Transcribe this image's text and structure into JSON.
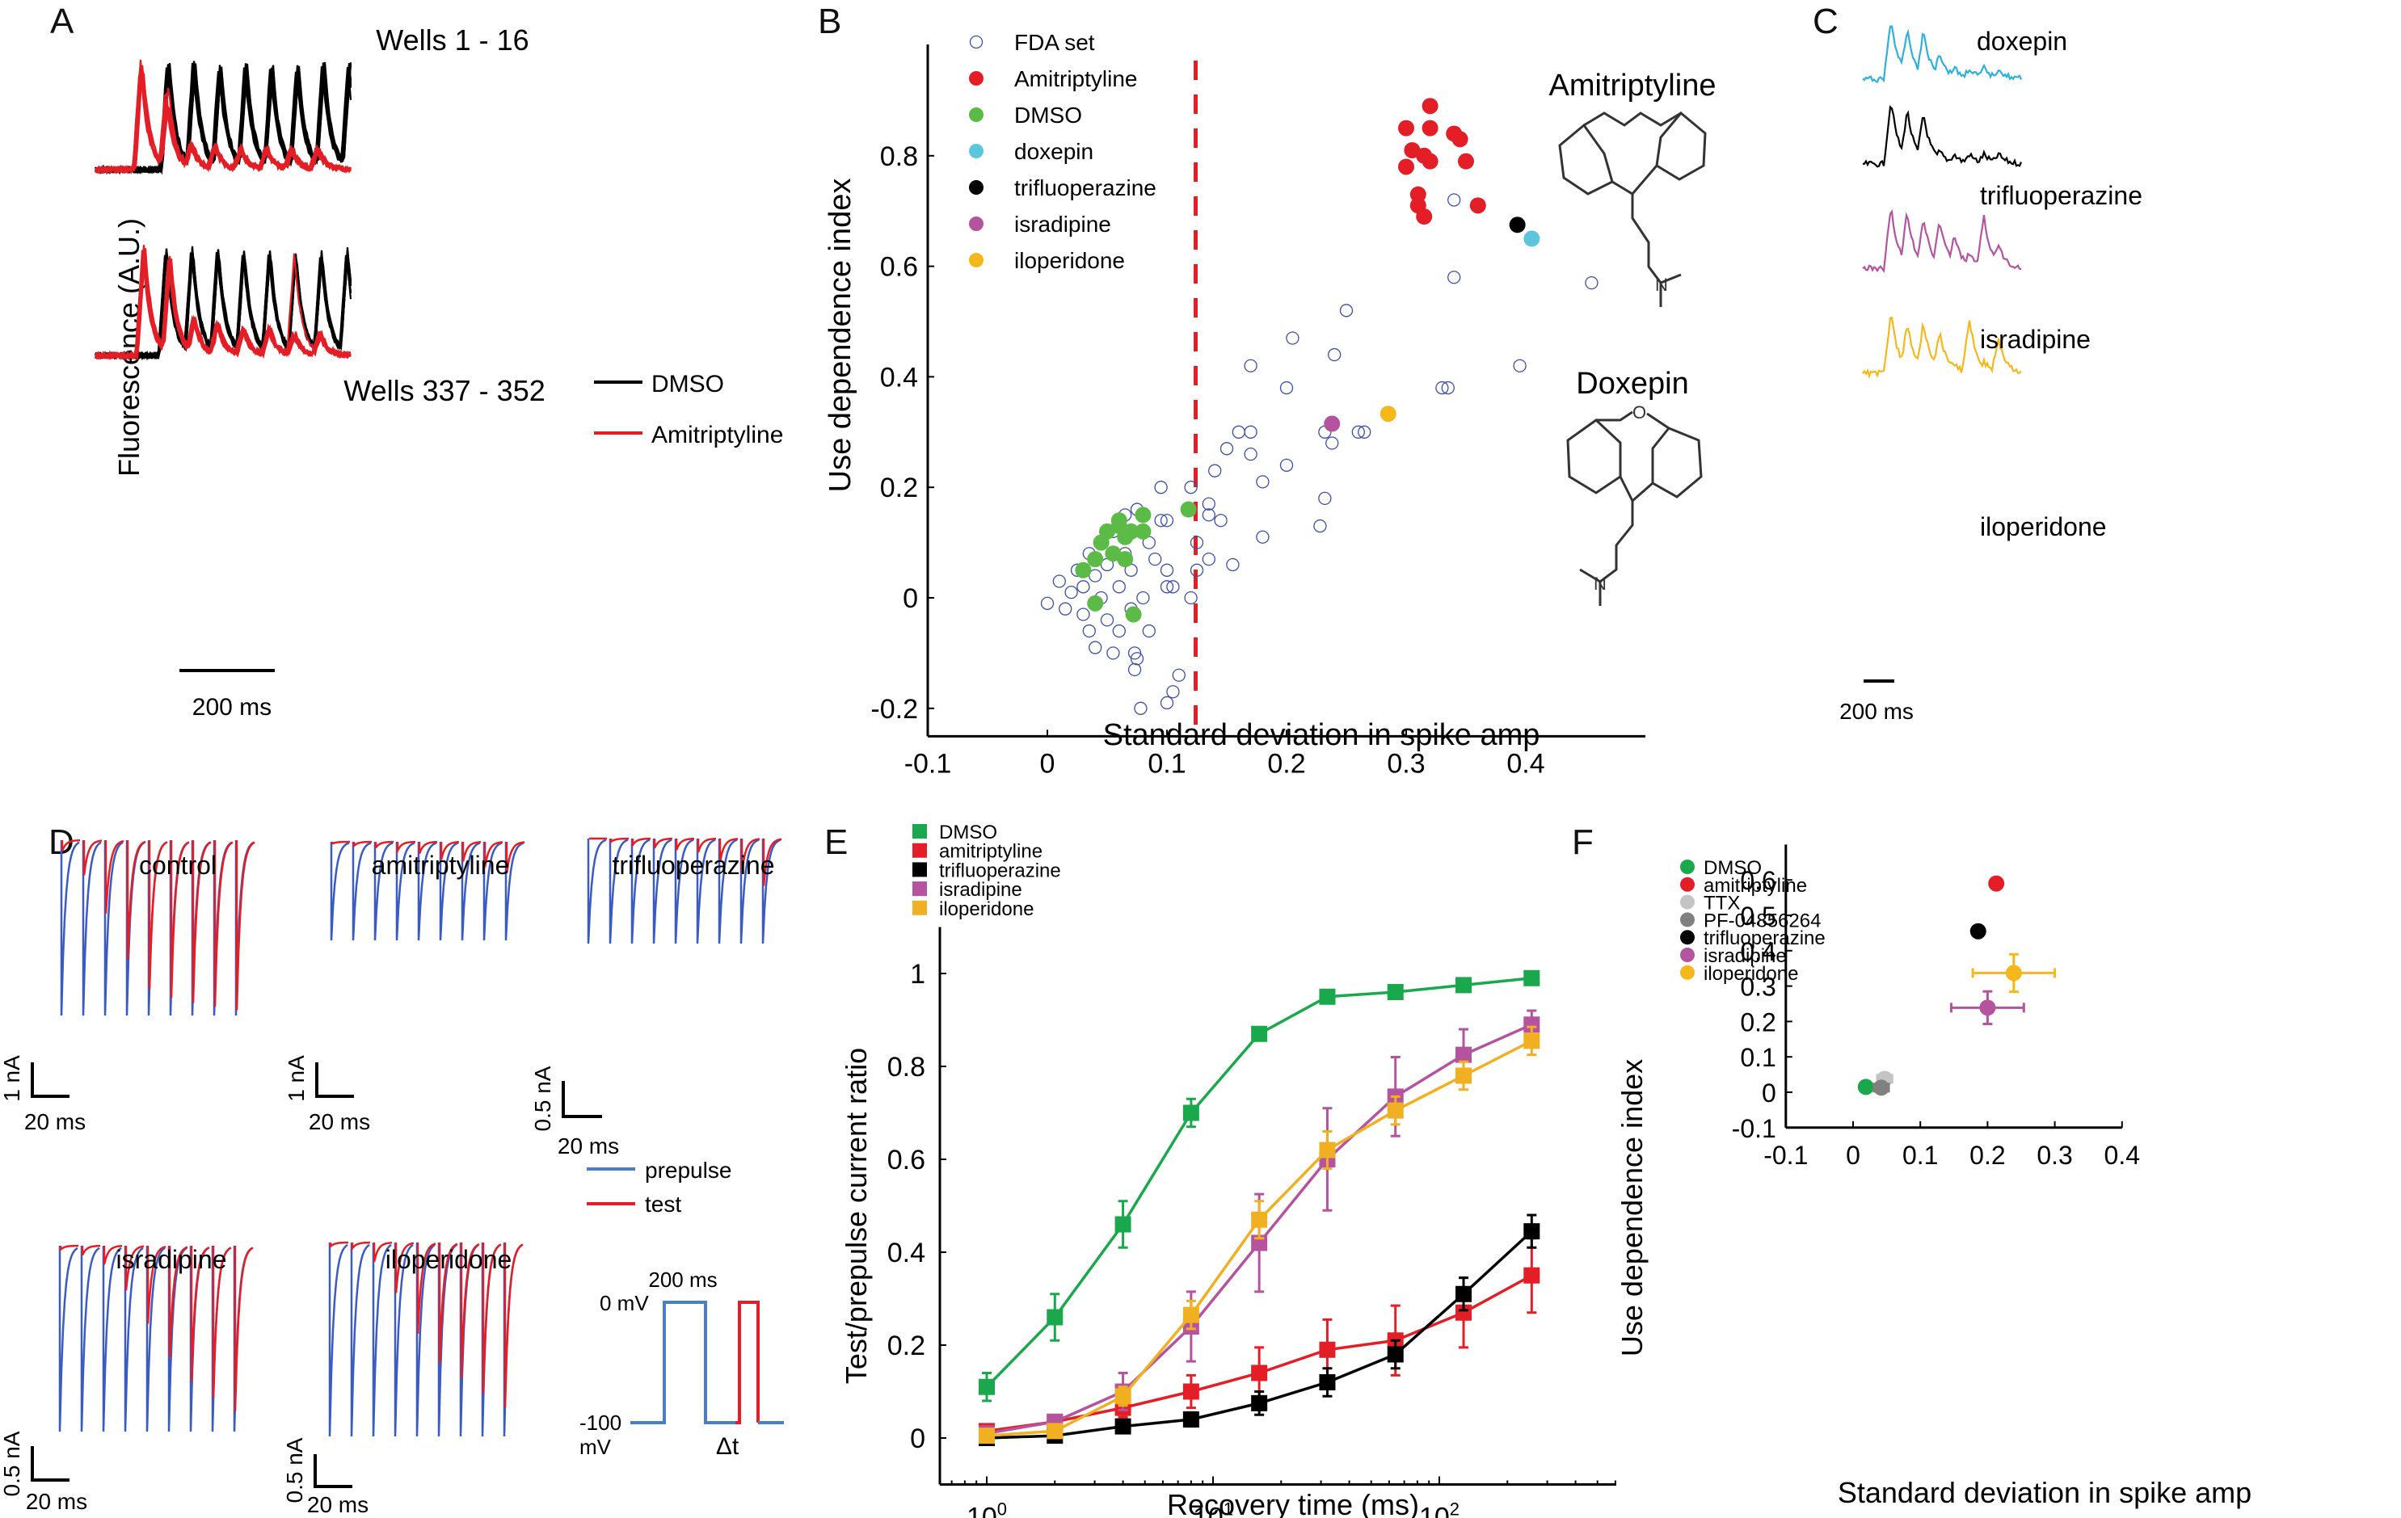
{
  "panels": {
    "A": {
      "letter": "A",
      "title_top": "Wells 1 - 16",
      "title_bottom": "Wells 337 - 352",
      "ylabel": "Fluorescence (A.U.)",
      "scalebar": "200 ms",
      "legend": [
        {
          "label": "DMSO",
          "color": "#000000"
        },
        {
          "label": "Amitriptyline",
          "color": "#e41e26"
        }
      ]
    },
    "B": {
      "letter": "B",
      "struct_label_1": "Amitriptyline",
      "struct_label_2": "Doxepin"
    },
    "C": {
      "letter": "C",
      "scalebar": "200 ms",
      "traces": [
        {
          "label": "doxepin",
          "color": "#2eb0dc"
        },
        {
          "label": "trifluoperazine",
          "color": "#000000"
        },
        {
          "label": "isradipine",
          "color": "#b5539f"
        },
        {
          "label": "iloperidone",
          "color": "#f4b81b"
        }
      ]
    },
    "D": {
      "letter": "D",
      "traces": [
        {
          "label": "control",
          "scale_y": "1 nA",
          "scale_x": "20 ms"
        },
        {
          "label": "amitriptyline",
          "scale_y": "1 nA",
          "scale_x": "20 ms"
        },
        {
          "label": "trifluoperazine",
          "scale_y": "0.5 nA",
          "scale_x": "20 ms"
        },
        {
          "label": "isradipine",
          "scale_y": "0.5 nA",
          "scale_x": "20 ms"
        },
        {
          "label": "iloperidone",
          "scale_y": "0.5 nA",
          "scale_x": "20 ms"
        }
      ],
      "legend": [
        {
          "label": "prepulse",
          "color": "#3a5bbf"
        },
        {
          "label": "test",
          "color": "#e41e26"
        }
      ],
      "protocol": {
        "duration": "200 ms",
        "v_high": "0 mV",
        "v_low": "-100",
        "v_low_unit": "mV",
        "delta": "Δt"
      }
    },
    "E": {
      "letter": "E"
    },
    "F": {
      "letter": "F"
    }
  },
  "chart_data": [
    {
      "id": "B",
      "type": "scatter",
      "title": "",
      "xlabel": "Standard deviation in spike amp",
      "ylabel": "Use dependence index",
      "xlim": [
        -0.1,
        0.5
      ],
      "ylim": [
        -0.23,
        1.0
      ],
      "xticks": [
        -0.1,
        0,
        0.1,
        0.2,
        0.3,
        0.4
      ],
      "xtick_labels": [
        "-0.1",
        "0",
        "0.1",
        "0.2",
        "0.3",
        "0.4"
      ],
      "yticks": [
        -0.2,
        0,
        0.2,
        0.4,
        0.6,
        0.8
      ],
      "ytick_labels": [
        "-0.2",
        "0",
        "0.2",
        "0.4",
        "0.6",
        "0.8"
      ],
      "threshold_x": 0.124,
      "legend_position": "top-left",
      "series": [
        {
          "name": "FDA set",
          "color": "#3c4fa8",
          "filled": false,
          "points": [
            [
              0.0,
              -0.01
            ],
            [
              0.01,
              0.03
            ],
            [
              0.015,
              -0.02
            ],
            [
              0.02,
              0.01
            ],
            [
              0.025,
              0.05
            ],
            [
              0.03,
              -0.03
            ],
            [
              0.03,
              0.02
            ],
            [
              0.035,
              0.08
            ],
            [
              0.035,
              -0.06
            ],
            [
              0.04,
              0.04
            ],
            [
              0.04,
              -0.09
            ],
            [
              0.045,
              0.0
            ],
            [
              0.045,
              0.1
            ],
            [
              0.05,
              -0.04
            ],
            [
              0.05,
              0.06
            ],
            [
              0.055,
              -0.1
            ],
            [
              0.055,
              0.12
            ],
            [
              0.06,
              0.02
            ],
            [
              0.06,
              -0.06
            ],
            [
              0.065,
              0.15
            ],
            [
              0.065,
              0.08
            ],
            [
              0.07,
              -0.02
            ],
            [
              0.07,
              0.05
            ],
            [
              0.075,
              -0.11
            ],
            [
              0.075,
              0.16
            ],
            [
              0.08,
              0.0
            ],
            [
              0.085,
              -0.06
            ],
            [
              0.085,
              0.1
            ],
            [
              0.09,
              0.07
            ],
            [
              0.095,
              0.2
            ],
            [
              0.095,
              0.14
            ],
            [
              0.1,
              0.14
            ],
            [
              0.1,
              0.02
            ],
            [
              0.1,
              0.05
            ],
            [
              0.105,
              0.02
            ],
            [
              0.11,
              -0.14
            ],
            [
              0.105,
              -0.17
            ],
            [
              0.1,
              -0.19
            ],
            [
              0.078,
              -0.2
            ],
            [
              0.073,
              -0.13
            ],
            [
              0.073,
              -0.1
            ],
            [
              0.12,
              0.0
            ],
            [
              0.12,
              0.2
            ],
            [
              0.125,
              0.1
            ],
            [
              0.125,
              0.05
            ],
            [
              0.135,
              0.17
            ],
            [
              0.135,
              0.15
            ],
            [
              0.135,
              0.07
            ],
            [
              0.14,
              0.23
            ],
            [
              0.145,
              0.14
            ],
            [
              0.15,
              0.27
            ],
            [
              0.155,
              0.06
            ],
            [
              0.16,
              0.3
            ],
            [
              0.17,
              0.3
            ],
            [
              0.17,
              0.26
            ],
            [
              0.17,
              0.42
            ],
            [
              0.18,
              0.21
            ],
            [
              0.18,
              0.11
            ],
            [
              0.2,
              0.24
            ],
            [
              0.2,
              0.38
            ],
            [
              0.205,
              0.47
            ],
            [
              0.228,
              0.13
            ],
            [
              0.232,
              0.18
            ],
            [
              0.232,
              0.3
            ],
            [
              0.238,
              0.28
            ],
            [
              0.24,
              0.44
            ],
            [
              0.25,
              0.52
            ],
            [
              0.26,
              0.3
            ],
            [
              0.265,
              0.3
            ],
            [
              0.33,
              0.38
            ],
            [
              0.335,
              0.38
            ],
            [
              0.34,
              0.58
            ],
            [
              0.34,
              0.72
            ],
            [
              0.395,
              0.42
            ],
            [
              0.455,
              0.57
            ]
          ]
        },
        {
          "name": "Amitriptyline",
          "color": "#e41e26",
          "filled": true,
          "points": [
            [
              0.3,
              0.85
            ],
            [
              0.32,
              0.89
            ],
            [
              0.32,
              0.85
            ],
            [
              0.34,
              0.84
            ],
            [
              0.345,
              0.83
            ],
            [
              0.305,
              0.81
            ],
            [
              0.315,
              0.8
            ],
            [
              0.32,
              0.79
            ],
            [
              0.35,
              0.79
            ],
            [
              0.3,
              0.78
            ],
            [
              0.31,
              0.73
            ],
            [
              0.31,
              0.71
            ],
            [
              0.315,
              0.69
            ],
            [
              0.36,
              0.71
            ]
          ]
        },
        {
          "name": "DMSO",
          "color": "#5bbb46",
          "filled": true,
          "points": [
            [
              0.03,
              0.05
            ],
            [
              0.04,
              0.07
            ],
            [
              0.045,
              0.1
            ],
            [
              0.05,
              0.12
            ],
            [
              0.055,
              0.08
            ],
            [
              0.06,
              0.13
            ],
            [
              0.06,
              0.14
            ],
            [
              0.065,
              0.11
            ],
            [
              0.065,
              0.07
            ],
            [
              0.07,
              0.12
            ],
            [
              0.08,
              0.15
            ],
            [
              0.08,
              0.12
            ],
            [
              0.118,
              0.16
            ],
            [
              0.04,
              -0.01
            ],
            [
              0.072,
              -0.03
            ]
          ]
        },
        {
          "name": "doxepin",
          "color": "#5ec6dc",
          "filled": true,
          "points": [
            [
              0.405,
              0.65
            ]
          ]
        },
        {
          "name": "trifluoperazine",
          "color": "#000000",
          "filled": true,
          "points": [
            [
              0.393,
              0.675
            ]
          ]
        },
        {
          "name": "isradipine",
          "color": "#b5539f",
          "filled": true,
          "points": [
            [
              0.238,
              0.315
            ]
          ]
        },
        {
          "name": "iloperidone",
          "color": "#f4b81b",
          "filled": true,
          "points": [
            [
              0.285,
              0.333
            ]
          ]
        }
      ]
    },
    {
      "id": "E",
      "type": "line",
      "title": "",
      "xlabel": "Recovery time (ms)",
      "ylabel": "Test/prepulse current ratio",
      "xscale": "log",
      "xlim": [
        0.6,
        500
      ],
      "ylim": [
        -0.1,
        1.1
      ],
      "xticks": [
        1,
        10,
        100
      ],
      "xtick_labels": [
        "10^0",
        "10^1",
        "10^2"
      ],
      "yticks": [
        0,
        0.2,
        0.4,
        0.6,
        0.8,
        1
      ],
      "ytick_labels": [
        "0",
        "0.2",
        "0.4",
        "0.6",
        "0.8",
        "1"
      ],
      "legend_position": "top-left",
      "x": [
        1,
        2,
        4,
        8,
        16,
        32,
        64,
        128,
        256
      ],
      "series": [
        {
          "name": "DMSO",
          "color": "#1aa84c",
          "values": [
            0.11,
            0.26,
            0.46,
            0.7,
            0.87,
            0.95,
            0.96,
            0.975,
            0.99
          ],
          "err": [
            0.03,
            0.05,
            0.05,
            0.03,
            0.01,
            0.01,
            0.01,
            0.01,
            0.01
          ]
        },
        {
          "name": "amitriptyline",
          "color": "#e41e26",
          "values": [
            0.015,
            0.035,
            0.065,
            0.1,
            0.14,
            0.19,
            0.21,
            0.27,
            0.35
          ],
          "err": [
            0.01,
            0.01,
            0.02,
            0.035,
            0.055,
            0.065,
            0.075,
            0.075,
            0.08
          ]
        },
        {
          "name": "trifluoperazine",
          "color": "#000000",
          "values": [
            0.0,
            0.005,
            0.025,
            0.04,
            0.075,
            0.12,
            0.18,
            0.31,
            0.445
          ],
          "err": [
            0.005,
            0.005,
            0.01,
            0.015,
            0.025,
            0.03,
            0.03,
            0.035,
            0.035
          ]
        },
        {
          "name": "isradipine",
          "color": "#b5539f",
          "values": [
            0.01,
            0.035,
            0.1,
            0.24,
            0.42,
            0.6,
            0.735,
            0.825,
            0.89
          ],
          "err": [
            0.01,
            0.01,
            0.04,
            0.075,
            0.105,
            0.11,
            0.085,
            0.055,
            0.03
          ]
        },
        {
          "name": "iloperidone",
          "color": "#f0b022",
          "values": [
            0.005,
            0.015,
            0.09,
            0.265,
            0.47,
            0.62,
            0.705,
            0.78,
            0.855
          ],
          "err": [
            0.005,
            0.01,
            0.02,
            0.03,
            0.04,
            0.04,
            0.03,
            0.03,
            0.03
          ]
        }
      ]
    },
    {
      "id": "F",
      "type": "scatter",
      "title": "",
      "xlabel": "Standard deviation in spike amp",
      "ylabel": "Use dependence index",
      "xlim": [
        -0.1,
        0.4
      ],
      "ylim": [
        -0.1,
        0.7
      ],
      "xticks": [
        -0.1,
        0,
        0.1,
        0.2,
        0.3,
        0.4
      ],
      "xtick_labels": [
        "-0.1",
        "0",
        "0.1",
        "0.2",
        "0.3",
        "0.4"
      ],
      "yticks": [
        -0.1,
        0,
        0.1,
        0.2,
        0.3,
        0.4,
        0.5,
        0.6
      ],
      "ytick_labels": [
        "-0.1",
        "0",
        "0.1",
        "0.2",
        "0.3",
        "0.4",
        "0.5",
        "0.6"
      ],
      "legend_position": "top-left",
      "series": [
        {
          "name": "DMSO",
          "color": "#1aa84c",
          "x": 0.019,
          "y": 0.015,
          "xerr": 0.0,
          "yerr": 0.0
        },
        {
          "name": "amitriptyline",
          "color": "#e41e26",
          "x": 0.213,
          "y": 0.59,
          "xerr": 0.003,
          "yerr": 0.014
        },
        {
          "name": "TTX",
          "color": "#c4c4c4",
          "x": 0.047,
          "y": 0.038,
          "xerr": 0.011,
          "yerr": 0.0
        },
        {
          "name": "PF-04856264",
          "color": "#808080",
          "x": 0.042,
          "y": 0.013,
          "xerr": 0.011,
          "yerr": 0.0
        },
        {
          "name": "trifluoperazine",
          "color": "#000000",
          "x": 0.186,
          "y": 0.455,
          "xerr": 0.0,
          "yerr": 0.014
        },
        {
          "name": "isradipine",
          "color": "#b5539f",
          "x": 0.2,
          "y": 0.239,
          "xerr": 0.054,
          "yerr": 0.046
        },
        {
          "name": "iloperidone",
          "color": "#f4b81b",
          "x": 0.239,
          "y": 0.337,
          "xerr": 0.061,
          "yerr": 0.053
        }
      ]
    }
  ]
}
